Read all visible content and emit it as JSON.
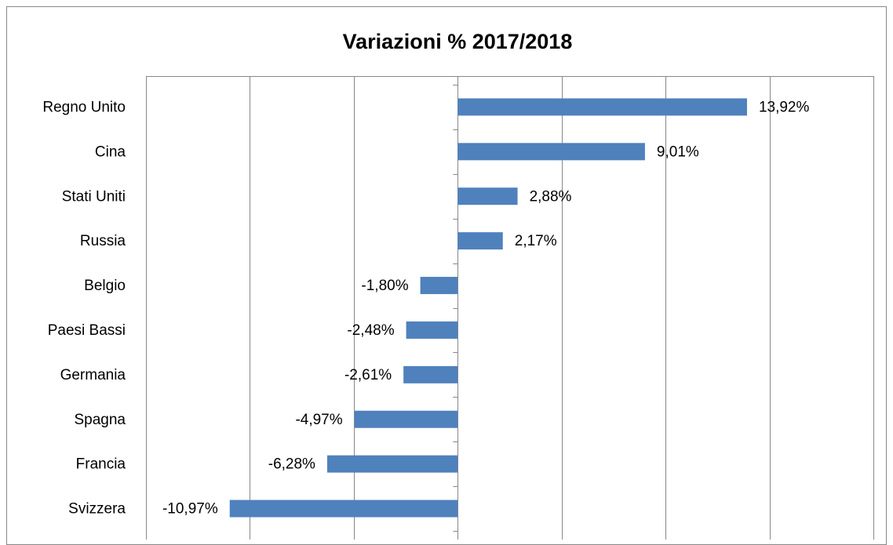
{
  "chart_data": {
    "type": "bar",
    "orientation": "horizontal",
    "title": "Variazioni % 2017/2018",
    "categories": [
      "Regno Unito",
      "Cina",
      "Stati Uniti",
      "Russia",
      "Belgio",
      "Paesi Bassi",
      "Germania",
      "Spagna",
      "Francia",
      "Svizzera"
    ],
    "values": [
      13.92,
      9.01,
      2.88,
      2.17,
      -1.8,
      -2.48,
      -2.61,
      -4.97,
      -6.28,
      -10.97
    ],
    "value_labels": [
      "13,92%",
      "9,01%",
      "2,88%",
      "2,17%",
      "-1,80%",
      "-2,48%",
      "-2,61%",
      "-4,97%",
      "-6,28%",
      "-10,97%"
    ],
    "color": "#4f81bd",
    "xlim": [
      -15,
      20
    ],
    "xticks": [
      -15,
      -10,
      -5,
      0,
      5,
      10,
      15,
      20
    ],
    "grid": true
  }
}
